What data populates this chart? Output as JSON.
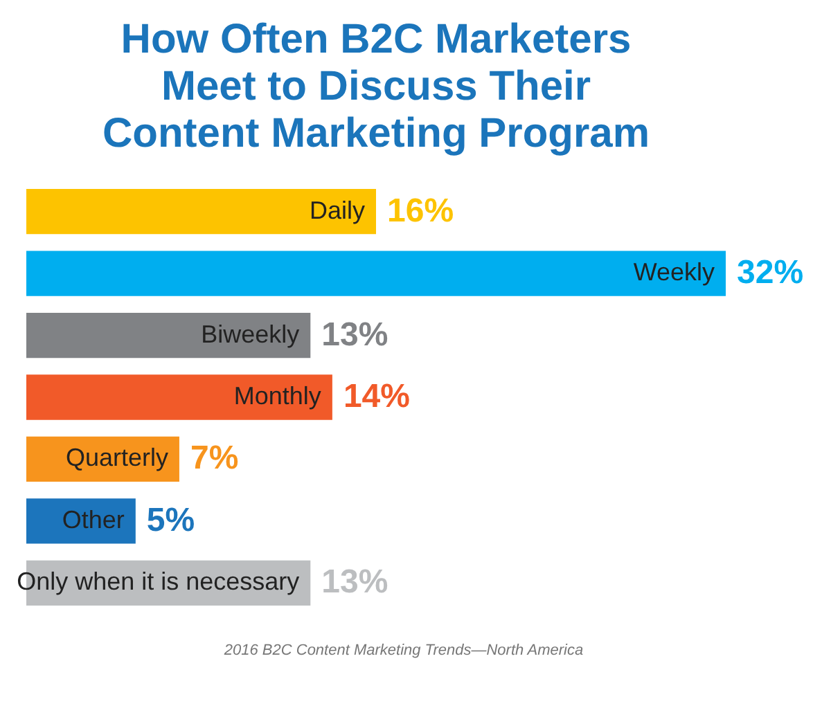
{
  "chart_data": {
    "type": "bar",
    "orientation": "horizontal",
    "title": [
      "How Often B2C Marketers",
      "Meet to Discuss Their",
      "Content Marketing Program"
    ],
    "categories": [
      "Daily",
      "Weekly",
      "Biweekly",
      "Monthly",
      "Quarterly",
      "Other",
      "Only when it is necessary"
    ],
    "values": [
      16,
      32,
      13,
      14,
      7,
      5,
      13
    ],
    "colors": [
      "#fdc300",
      "#00aeef",
      "#808285",
      "#f15a29",
      "#f7941d",
      "#1c75bc",
      "#bcbec0"
    ],
    "value_labels": [
      "16%",
      "32%",
      "13%",
      "14%",
      "7%",
      "5%",
      "13%"
    ],
    "annotations": [
      "2016 B2C Content Marketing Trends—North America"
    ]
  }
}
